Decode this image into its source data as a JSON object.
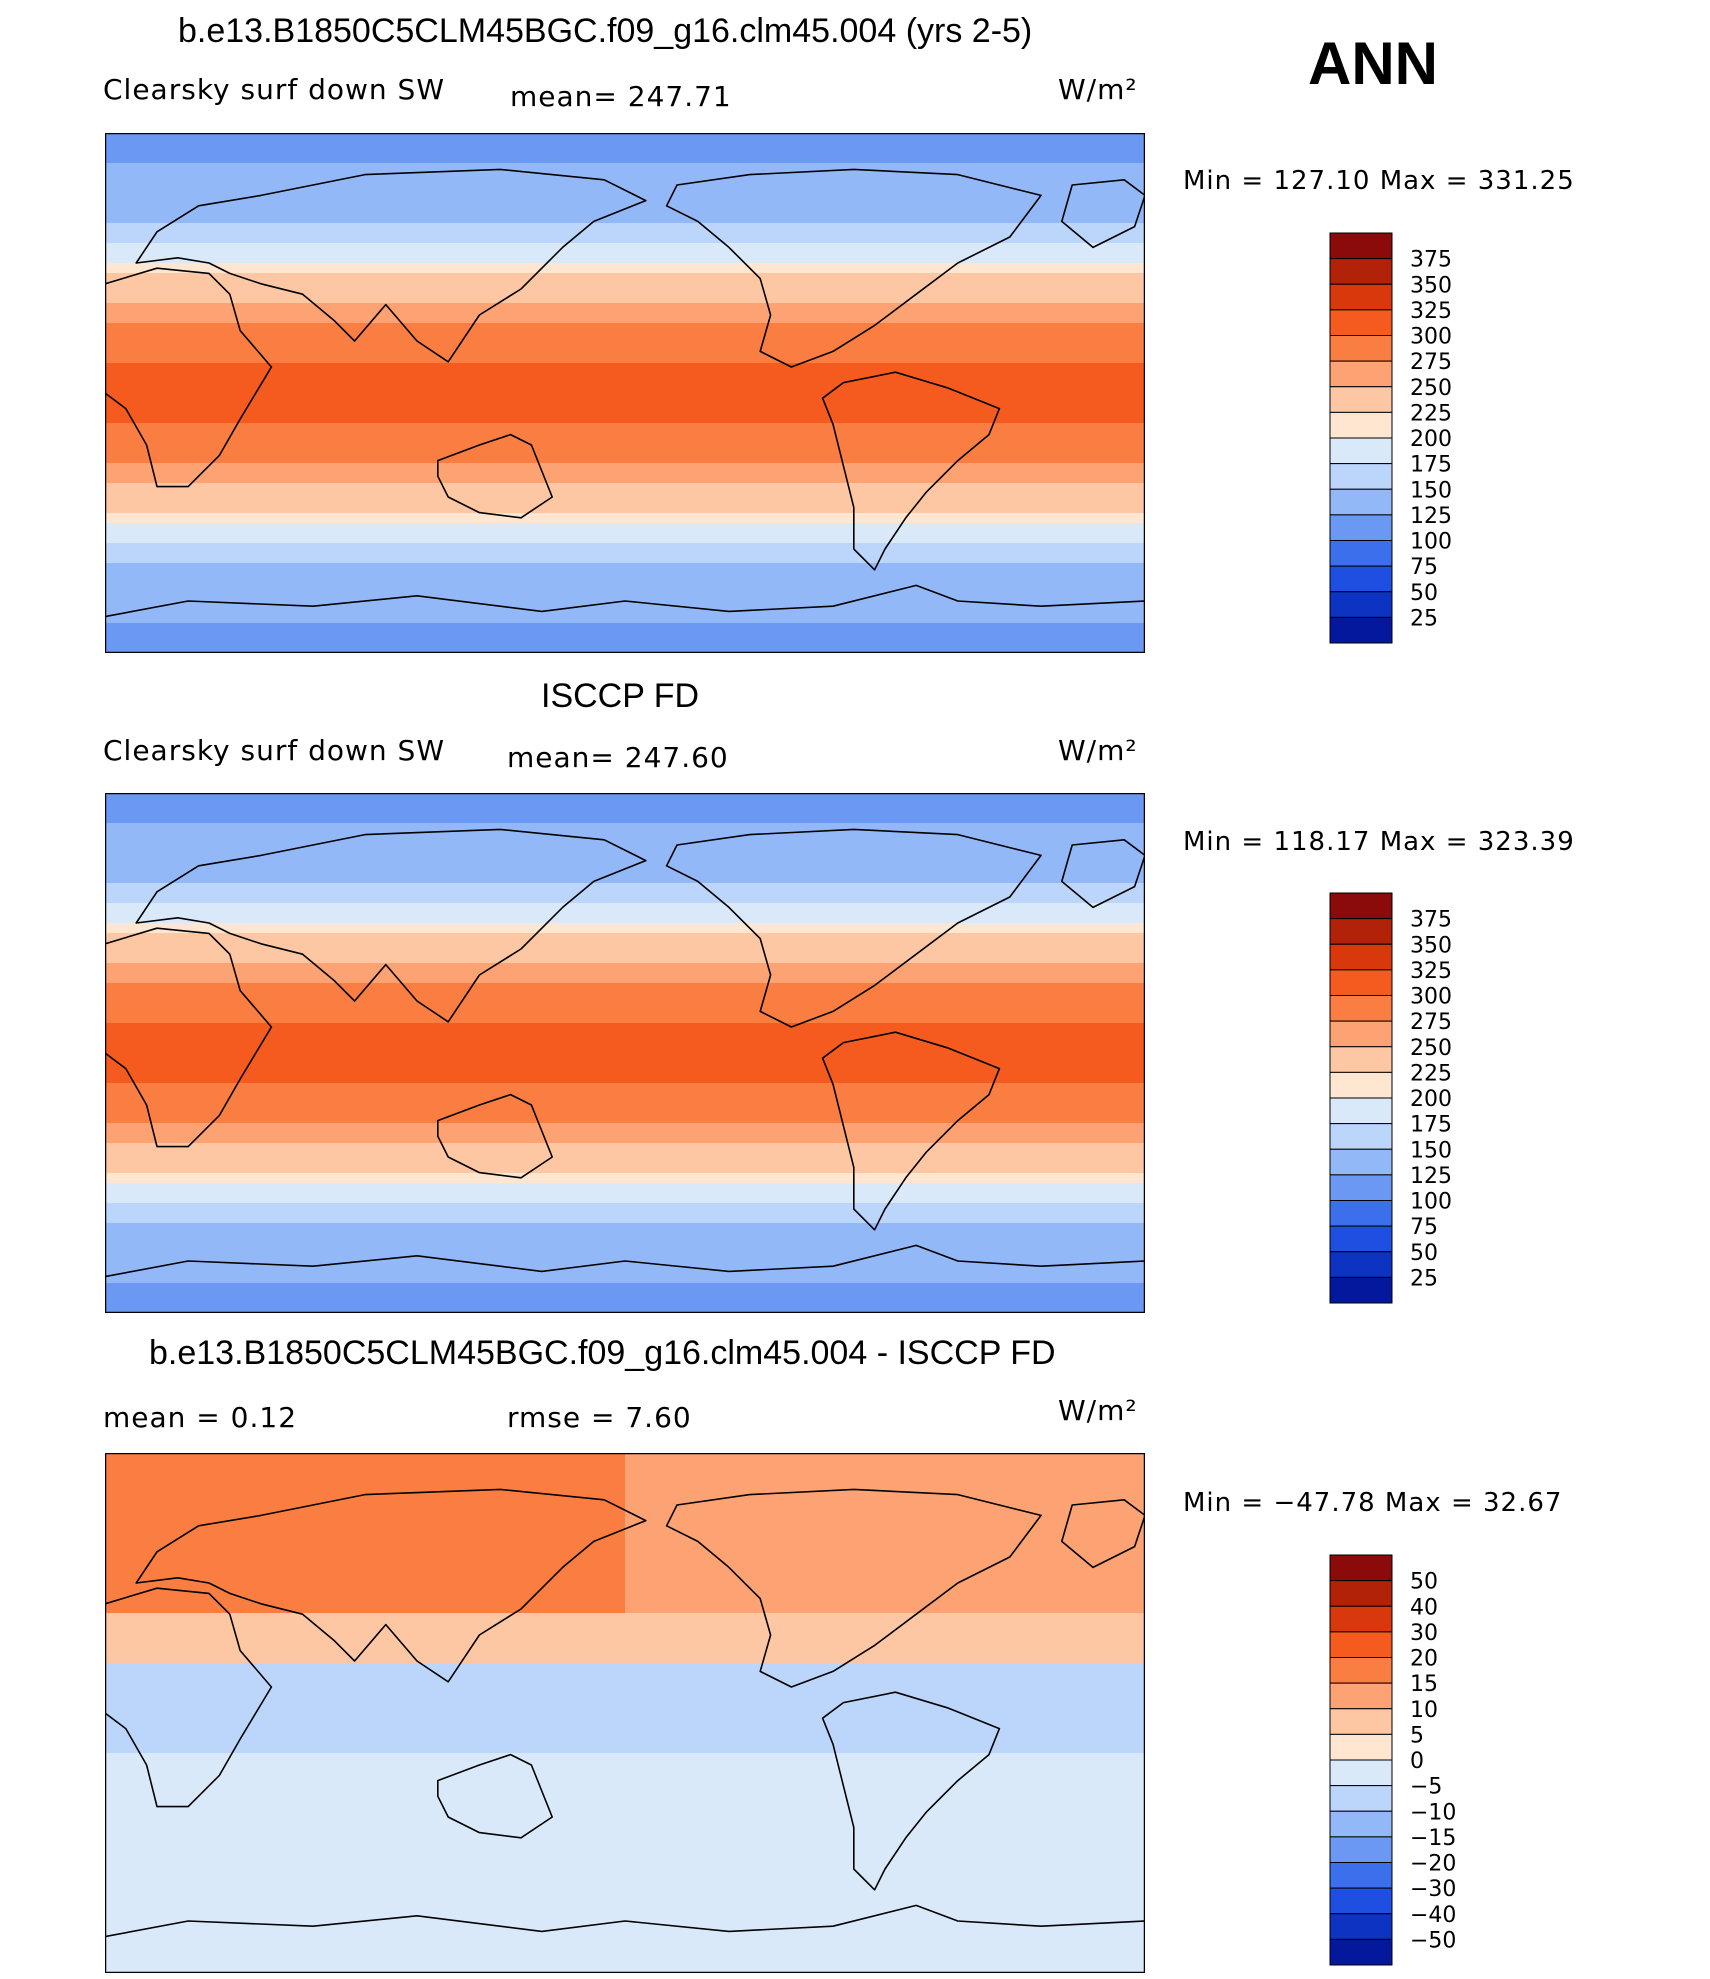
{
  "season": "ANN",
  "chart_data": [
    {
      "type": "heatmap",
      "title": "b.e13.B1850C5CLM45BGC.f09_g16.clm45.004 (yrs 2-5)",
      "variable": "Clearsky surf down SW",
      "mean_label": "mean= 247.71",
      "units": "W/m²",
      "min_max_label": "Min  =  127.10  Max  =  331.25",
      "min": 127.1,
      "max": 331.25,
      "mean": 247.71,
      "levels": [
        "375",
        "350",
        "325",
        "300",
        "275",
        "250",
        "225",
        "200",
        "175",
        "150",
        "125",
        "100",
        "75",
        "50",
        "25"
      ],
      "field": "clearsky"
    },
    {
      "type": "heatmap",
      "title": "ISCCP FD",
      "variable": "Clearsky surf down SW",
      "mean_label": "mean= 247.60",
      "units": "W/m²",
      "min_max_label": "Min  =  118.17  Max  =  323.39",
      "min": 118.17,
      "max": 323.39,
      "mean": 247.6,
      "levels": [
        "375",
        "350",
        "325",
        "300",
        "275",
        "250",
        "225",
        "200",
        "175",
        "150",
        "125",
        "100",
        "75",
        "50",
        "25"
      ],
      "field": "clearsky"
    },
    {
      "type": "heatmap",
      "title": "b.e13.B1850C5CLM45BGC.f09_g16.clm45.004 - ISCCP FD",
      "mean_label": "mean  =      0.12",
      "rmse_label": "rmse  =      7.60",
      "units": "W/m²",
      "min_max_label": "Min  =  −47.78  Max  =     32.67",
      "min": -47.78,
      "max": 32.67,
      "mean": 0.12,
      "rmse": 7.6,
      "levels": [
        "50",
        "40",
        "30",
        "20",
        "15",
        "10",
        "5",
        "0",
        "−5",
        "−10",
        "−15",
        "−20",
        "−30",
        "−40",
        "−50"
      ],
      "field": "difference"
    }
  ],
  "palette": [
    "#8b0a0a",
    "#b22208",
    "#d8380c",
    "#f55a1e",
    "#fa7d42",
    "#fca273",
    "#fec7a4",
    "#ffe6d1",
    "#d9e9fa",
    "#bcd5fa",
    "#93b8f8",
    "#6a98f2",
    "#3b6fec",
    "#1f4fe0",
    "#0d33c2",
    "#04189d",
    "#000a6e"
  ]
}
